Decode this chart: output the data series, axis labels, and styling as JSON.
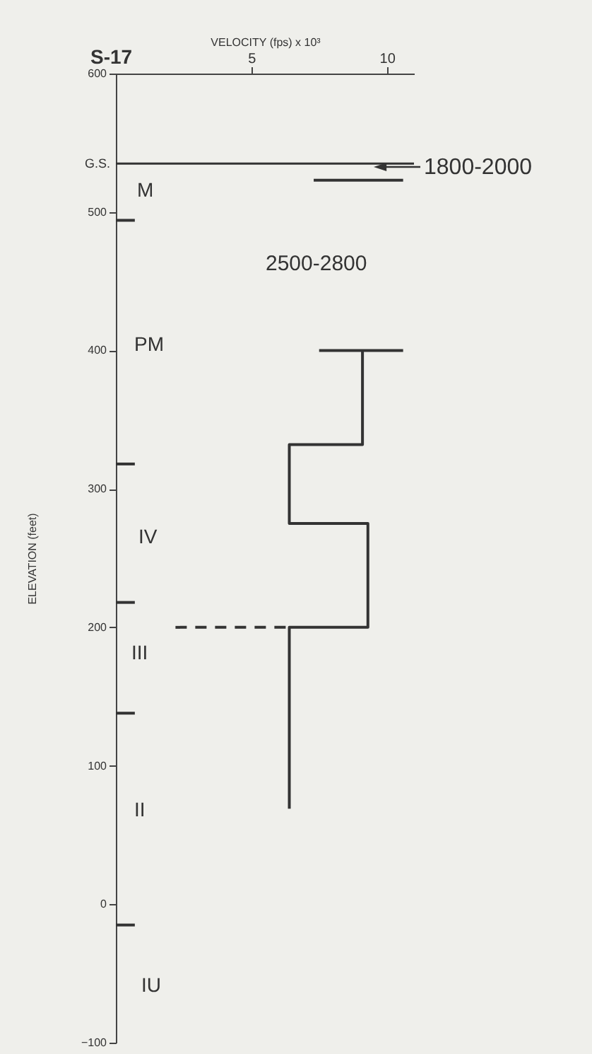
{
  "chart_data": {
    "type": "line",
    "title": "S-17",
    "xlabel": "VELOCITY (fps) x 10³",
    "ylabel": "ELEVATION (feet)",
    "xlim": [
      0,
      11
    ],
    "xticks": [
      5,
      10
    ],
    "ylim": [
      -100,
      600
    ],
    "yticks": [
      -100,
      0,
      100,
      200,
      300,
      400,
      500,
      600
    ],
    "series": [
      {
        "color": "#333333",
        "x": [
          9.1,
          9.1,
          6.4,
          6.4,
          9.3,
          9.3,
          6.4,
          6.4
        ],
        "values": [
          400,
          332,
          332,
          275,
          275,
          200,
          200,
          69
        ]
      },
      {
        "color": "#333333",
        "x": [
          7.5,
          10.6
        ],
        "values": [
          400,
          400
        ]
      },
      {
        "color": "#333333",
        "x": [
          7.3,
          10.6
        ],
        "values": [
          523,
          523
        ]
      },
      {
        "color": "#333333",
        "x": [
          2.2,
          6.4
        ],
        "values": [
          200,
          200
        ],
        "line_style": "dashed"
      },
      {
        "color": "#333333",
        "x": [
          0,
          0.7
        ],
        "values": [
          494,
          494
        ]
      },
      {
        "color": "#333333",
        "x": [
          0,
          0.7
        ],
        "values": [
          318,
          318
        ]
      },
      {
        "color": "#333333",
        "x": [
          0,
          0.7
        ],
        "values": [
          218,
          218
        ]
      },
      {
        "color": "#333333",
        "x": [
          0,
          0.7
        ],
        "values": [
          138,
          138
        ]
      },
      {
        "color": "#333333",
        "x": [
          0,
          0.7
        ],
        "values": [
          -15,
          -15
        ]
      }
    ],
    "ref_lines": [
      {
        "axis": "y",
        "value": 535,
        "label": "G.S.",
        "color": "#333333"
      }
    ],
    "annotations": [
      "1800-2000",
      "2500-2800",
      "M",
      "PM",
      "IV",
      "III",
      "II",
      "IU"
    ],
    "legend": false,
    "grid": false
  }
}
